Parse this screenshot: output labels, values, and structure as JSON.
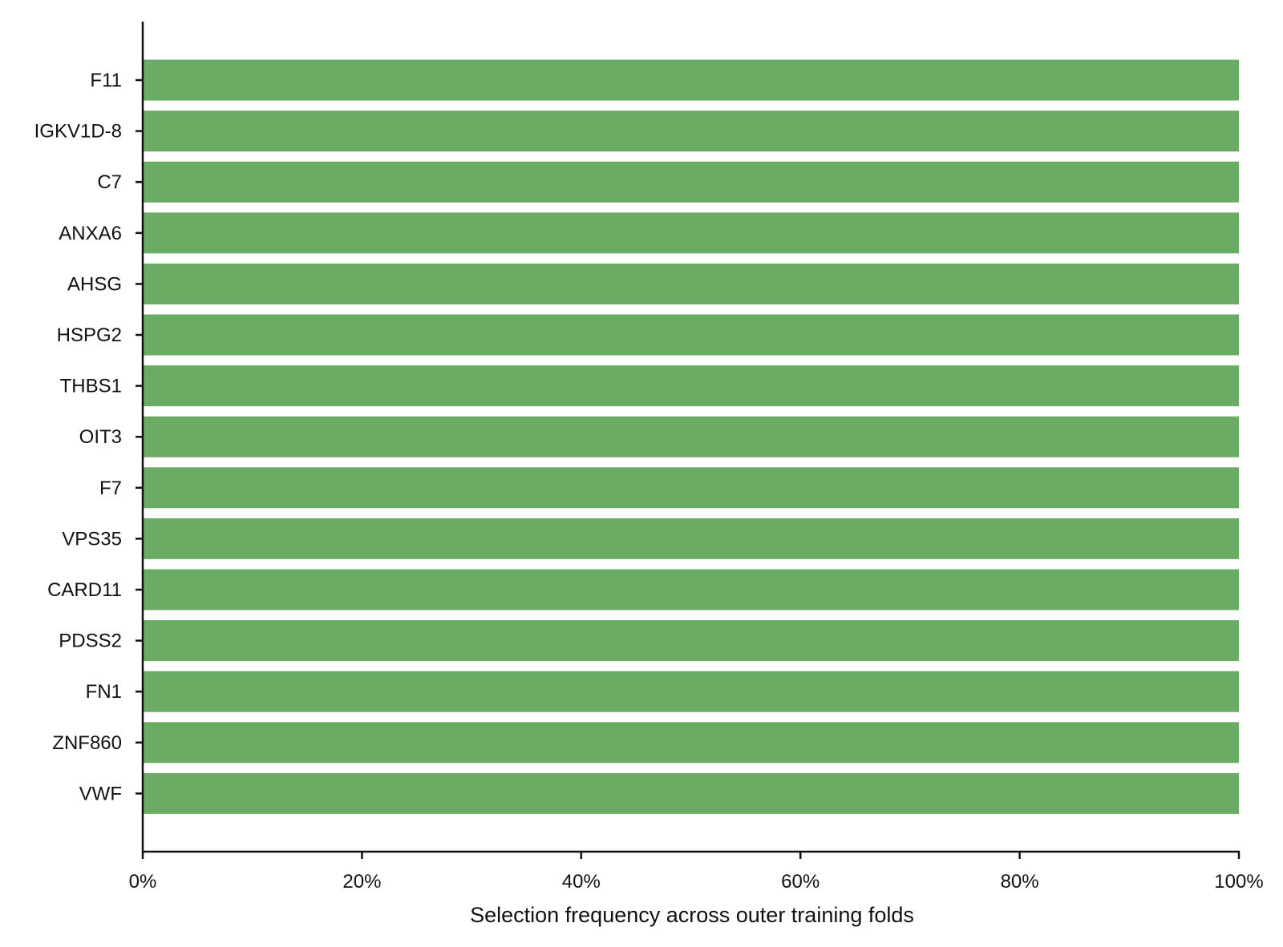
{
  "chart_data": {
    "type": "bar",
    "orientation": "horizontal",
    "title": "",
    "xlabel": "Selection frequency across outer training folds",
    "ylabel": "",
    "categories": [
      "F11",
      "IGKV1D-8",
      "C7",
      "ANXA6",
      "AHSG",
      "HSPG2",
      "THBS1",
      "OIT3",
      "F7",
      "VPS35",
      "CARD11",
      "PDSS2",
      "FN1",
      "ZNF860",
      "VWF"
    ],
    "values": [
      100,
      100,
      100,
      100,
      100,
      100,
      100,
      100,
      100,
      100,
      100,
      100,
      100,
      100,
      100
    ],
    "xlim": [
      0,
      100
    ],
    "xticks": [
      0,
      20,
      40,
      60,
      80,
      100
    ],
    "xtick_labels": [
      "0%",
      "20%",
      "40%",
      "60%",
      "80%",
      "100%"
    ],
    "grid": false,
    "legend": "none",
    "bar_color": "#6aac63",
    "axis_color": "#111111"
  }
}
